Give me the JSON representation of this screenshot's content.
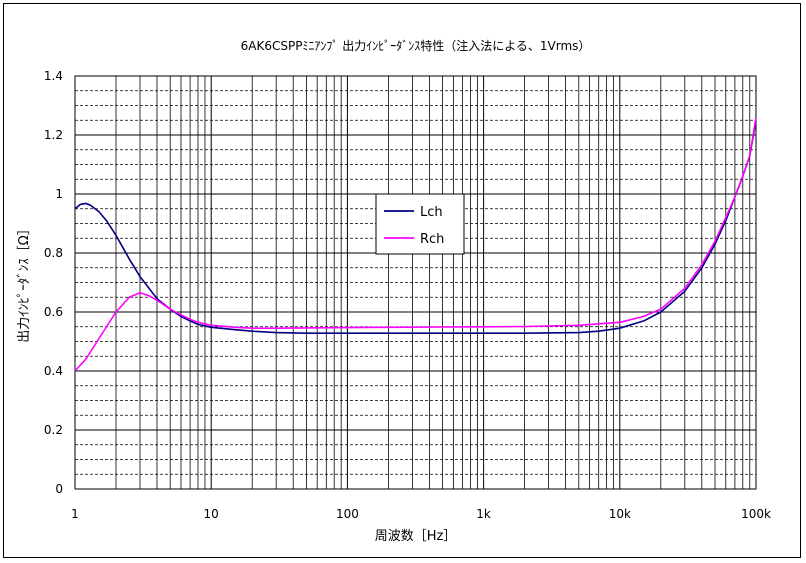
{
  "chart_data": {
    "type": "line",
    "title": "6AK6CSPPﾐﾆｱﾝﾌﾟ 出力ｲﾝﾋﾟｰﾀﾞﾝｽ特性（注入法による、1Vrms）",
    "xlabel": "周波数［Hz］",
    "ylabel": "出力ｲﾝﾋﾟｰﾀﾞﾝｽ［Ω］",
    "x_scale": "log",
    "xlim": [
      1,
      100000
    ],
    "ylim": [
      0,
      1.4
    ],
    "x_ticks": [
      1,
      10,
      100,
      1000,
      10000,
      100000
    ],
    "x_tick_labels": [
      "1",
      "10",
      "100",
      "1k",
      "10k",
      "100k"
    ],
    "y_ticks": [
      0,
      0.2,
      0.4,
      0.6,
      0.8,
      1,
      1.2,
      1.4
    ],
    "y_tick_labels": [
      "0",
      "0.2",
      "0.4",
      "0.6",
      "0.8",
      "1",
      "1.2",
      "1.4"
    ],
    "grid": true,
    "legend_position": "center-left",
    "series": [
      {
        "name": "Lch",
        "color": "#000080",
        "x": [
          1,
          1.1,
          1.2,
          1.3,
          1.5,
          1.7,
          2,
          2.5,
          3,
          3.5,
          4,
          5,
          6,
          7,
          8,
          10,
          15,
          20,
          30,
          50,
          100,
          200,
          500,
          1000,
          2000,
          5000,
          7000,
          10000,
          15000,
          20000,
          30000,
          40000,
          50000,
          60000,
          70000,
          80000,
          90000,
          100000
        ],
        "y": [
          0.95,
          0.965,
          0.968,
          0.962,
          0.94,
          0.91,
          0.86,
          0.78,
          0.72,
          0.68,
          0.645,
          0.61,
          0.585,
          0.57,
          0.558,
          0.548,
          0.54,
          0.535,
          0.53,
          0.528,
          0.528,
          0.528,
          0.528,
          0.528,
          0.528,
          0.53,
          0.535,
          0.545,
          0.57,
          0.6,
          0.67,
          0.75,
          0.83,
          0.91,
          0.99,
          1.06,
          1.13,
          1.25
        ]
      },
      {
        "name": "Rch",
        "color": "#ff00ff",
        "x": [
          1,
          1.2,
          1.5,
          2,
          2.5,
          3,
          3.5,
          4,
          5,
          6,
          7,
          8,
          10,
          15,
          20,
          30,
          50,
          100,
          200,
          500,
          1000,
          2000,
          5000,
          7000,
          10000,
          15000,
          20000,
          30000,
          40000,
          50000,
          60000,
          70000,
          80000,
          90000,
          100000
        ],
        "y": [
          0.4,
          0.44,
          0.51,
          0.6,
          0.65,
          0.665,
          0.655,
          0.64,
          0.61,
          0.59,
          0.575,
          0.565,
          0.555,
          0.548,
          0.545,
          0.545,
          0.546,
          0.547,
          0.548,
          0.549,
          0.55,
          0.551,
          0.555,
          0.56,
          0.565,
          0.585,
          0.61,
          0.68,
          0.76,
          0.84,
          0.92,
          0.99,
          1.06,
          1.13,
          1.26
        ]
      }
    ]
  }
}
